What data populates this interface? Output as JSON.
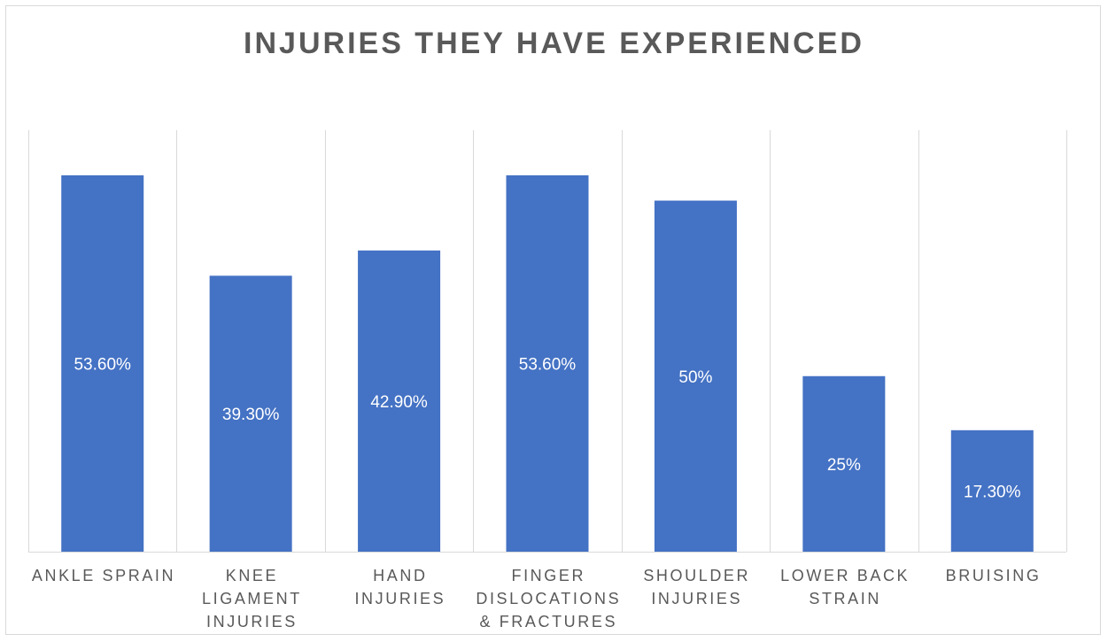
{
  "chart_data": {
    "type": "bar",
    "title": "INJURIES THEY HAVE EXPERIENCED",
    "categories": [
      [
        "ANKLE SPRAIN"
      ],
      [
        "KNEE",
        "LIGAMENT",
        "INJURIES"
      ],
      [
        "HAND",
        "INJURIES"
      ],
      [
        "FINGER",
        "DISLOCATIONS",
        "& FRACTURES"
      ],
      [
        "SHOULDER",
        "INJURIES"
      ],
      [
        "LOWER BACK",
        "STRAIN"
      ],
      [
        "BRUISING"
      ]
    ],
    "values": [
      53.6,
      39.3,
      42.9,
      53.6,
      50,
      25,
      17.3
    ],
    "value_labels": [
      "53.60%",
      "39.30%",
      "42.90%",
      "53.60%",
      "50%",
      "25%",
      "17.30%"
    ],
    "xlabel": "",
    "ylabel": "",
    "ylim": [
      0,
      60
    ],
    "grid": "vertical separators between categories",
    "legend": "none",
    "bar_color": "#4472c4",
    "gridline_color": "#d9d9d9",
    "text_color": "#595959"
  }
}
